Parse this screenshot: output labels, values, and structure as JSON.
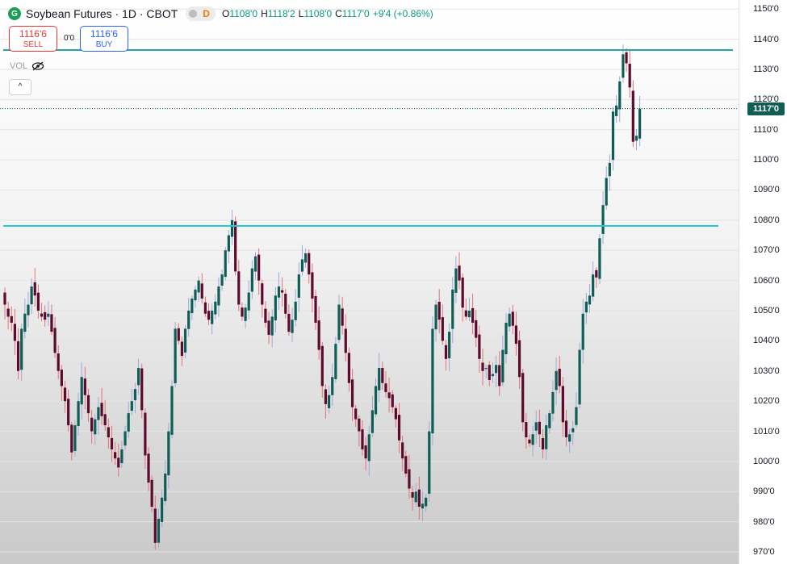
{
  "header": {
    "symbol_title": "Soybean Futures · 1D · CBOT",
    "logo_letter": "G",
    "interval_badge": "D",
    "open_label": "O",
    "open": "1108'0",
    "high_label": "H",
    "high": "1118'2",
    "low_label": "L",
    "low": "1108'0",
    "close_label": "C",
    "close": "1117'0",
    "change": "+9'4 (+0.86%)"
  },
  "trade": {
    "sell_price": "1116'6",
    "sell_label": "SELL",
    "spread": "0'0",
    "buy_price": "1116'6",
    "buy_label": "BUY"
  },
  "volume_label": "VOL",
  "collapse_glyph": "^",
  "colors": {
    "up": "#0f5e56",
    "down": "#5c0a2e",
    "resistance": "#26a69a",
    "support": "#26c6da"
  },
  "chart_data": {
    "type": "candlestick",
    "title": "Soybean Futures · 1D · CBOT",
    "ylim": [
      966,
      1153
    ],
    "y_ticks": [
      "1150'0",
      "1140'0",
      "1130'0",
      "1120'0",
      "1110'0",
      "1100'0",
      "1090'0",
      "1080'0",
      "1070'0",
      "1060'0",
      "1050'0",
      "1040'0",
      "1030'0",
      "1020'0",
      "1010'0",
      "1000'0",
      "990'0",
      "980'0",
      "970'0"
    ],
    "y_tick_values": [
      1150,
      1140,
      1130,
      1120,
      1110,
      1100,
      1090,
      1080,
      1070,
      1060,
      1050,
      1040,
      1030,
      1020,
      1010,
      1000,
      990,
      980,
      970
    ],
    "last_price": "1117'0",
    "last_price_value": 1117,
    "horizontal_lines": [
      {
        "name": "resistance",
        "value": 1136.4
      },
      {
        "name": "support",
        "value": 1078.1
      }
    ],
    "closes": [
      1052,
      1048,
      1046,
      1040,
      1030,
      1044,
      1049,
      1052,
      1058,
      1055,
      1050,
      1048,
      1047,
      1049,
      1043,
      1036,
      1030,
      1025,
      1020,
      1012,
      1003,
      1012,
      1020,
      1028,
      1022,
      1016,
      1010,
      1014,
      1018,
      1015,
      1012,
      1008,
      1004,
      1001,
      998,
      1004,
      1010,
      1016,
      1020,
      1024,
      1031,
      1017,
      1002,
      993,
      985,
      973,
      981,
      988,
      996,
      1010,
      1025,
      1044,
      1040,
      1035,
      1044,
      1050,
      1054,
      1057,
      1060,
      1054,
      1049,
      1047,
      1050,
      1053,
      1058,
      1062,
      1070,
      1075,
      1080,
      1063,
      1052,
      1048,
      1051,
      1056,
      1064,
      1068,
      1060,
      1052,
      1046,
      1042,
      1048,
      1055,
      1058,
      1056,
      1049,
      1043,
      1047,
      1053,
      1062,
      1067,
      1069,
      1062,
      1054,
      1046,
      1037,
      1025,
      1019,
      1022,
      1028,
      1039,
      1052,
      1045,
      1036,
      1026,
      1018,
      1014,
      1010,
      1004,
      1001,
      1009,
      1017,
      1025,
      1031,
      1026,
      1023,
      1021,
      1018,
      1014,
      1007,
      1001,
      996,
      991,
      988,
      990,
      985,
      986,
      988,
      1010,
      1044,
      1052,
      1047,
      1040,
      1034,
      1043,
      1057,
      1064,
      1060,
      1051,
      1048,
      1050,
      1046,
      1041,
      1034,
      1030,
      1031,
      1027,
      1029,
      1032,
      1025,
      1037,
      1046,
      1049,
      1045,
      1039,
      1028,
      1013,
      1008,
      1006,
      1009,
      1013,
      1009,
      1004,
      1012,
      1016,
      1023,
      1030,
      1025,
      1013,
      1008,
      1009,
      1011,
      1018,
      1037,
      1049,
      1053,
      1055,
      1062,
      1061,
      1074,
      1085,
      1094,
      1099,
      1116,
      1118,
      1126,
      1135,
      1132,
      1124,
      1106,
      1108,
      1117
    ],
    "x_axis": "daily sessions (dates not shown)"
  }
}
